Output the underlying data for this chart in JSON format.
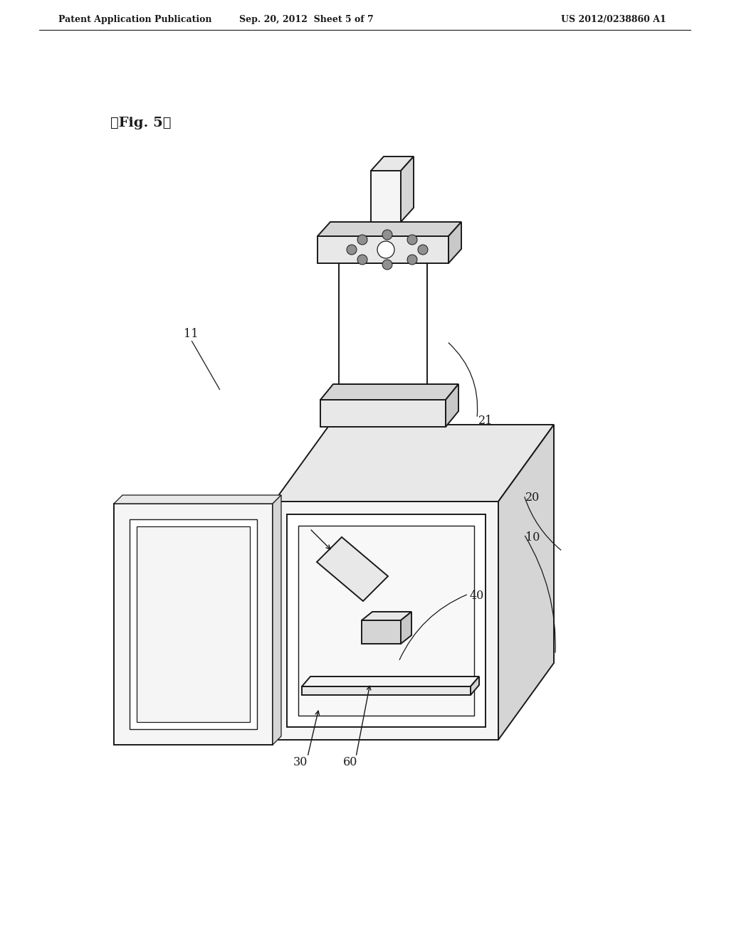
{
  "background": "#ffffff",
  "lc": "#1a1a1a",
  "header_left": "Patent Application Publication",
  "header_center": "Sep. 20, 2012  Sheet 5 of 7",
  "header_right": "US 2012/0238860 A1",
  "fig_label": "《Fig. 5》",
  "f_white": "#ffffff",
  "f_light": "#f5f5f5",
  "f_mid": "#e8e8e8",
  "f_dark": "#d5d5d5",
  "f_darker": "#c8c8c8",
  "f_bolt": "#909090"
}
